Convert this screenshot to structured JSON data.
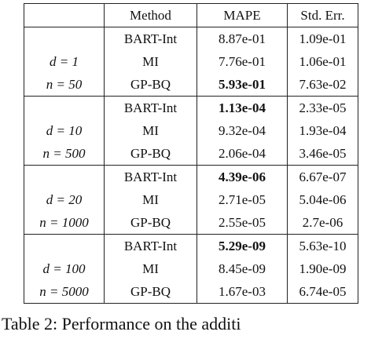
{
  "table": {
    "header": [
      "Method",
      "MAPE",
      "Std. Err."
    ],
    "groups": [
      {
        "d": "d = 1",
        "n": "n = 50",
        "bold_row": 2,
        "rows": [
          [
            "BART-Int",
            "8.87e-01",
            "1.09e-01"
          ],
          [
            "MI",
            "7.76e-01",
            "1.06e-01"
          ],
          [
            "GP-BQ",
            "5.93e-01",
            "7.63e-02"
          ]
        ]
      },
      {
        "d": "d = 10",
        "n": "n = 500",
        "bold_row": 0,
        "rows": [
          [
            "BART-Int",
            "1.13e-04",
            "2.33e-05"
          ],
          [
            "MI",
            "9.32e-04",
            "1.93e-04"
          ],
          [
            "GP-BQ",
            "2.06e-04",
            "3.46e-05"
          ]
        ]
      },
      {
        "d": "d = 20",
        "n": "n = 1000",
        "bold_row": 0,
        "rows": [
          [
            "BART-Int",
            "4.39e-06",
            "6.67e-07"
          ],
          [
            "MI",
            "2.71e-05",
            "5.04e-06"
          ],
          [
            "GP-BQ",
            "2.55e-05",
            "2.7e-06"
          ]
        ]
      },
      {
        "d": "d = 100",
        "n": "n = 5000",
        "bold_row": 0,
        "rows": [
          [
            "BART-Int",
            "5.29e-09",
            "5.63e-10"
          ],
          [
            "MI",
            "8.45e-09",
            "1.90e-09"
          ],
          [
            "GP-BQ",
            "1.67e-03",
            "6.74e-05"
          ]
        ]
      }
    ]
  },
  "caption": "Table 2:   Performance on the additi"
}
